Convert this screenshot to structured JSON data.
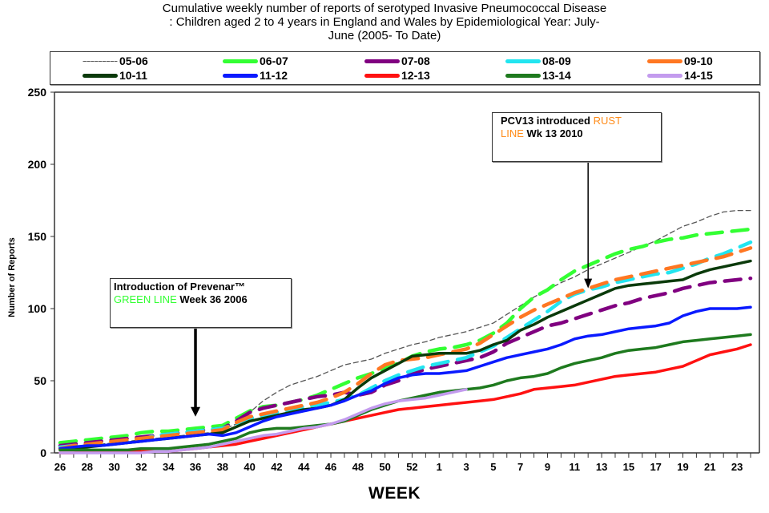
{
  "chart_data": {
    "type": "line",
    "title": "Cumulative weekly number of reports of serotyped  Invasive Pneumococcal Disease : Children aged 2 to 4 years in England and Wales by Epidemiological Year: July-June (2005- To Date)",
    "title_lines": [
      "Cumulative weekly number of reports of serotyped  Invasive Pneumococcal Disease",
      ": Children aged 2 to 4 years in England and Wales by Epidemiological Year: July-",
      "June (2005- To Date)"
    ],
    "xlabel": "WEEK",
    "ylabel": "Number of Reports",
    "ylim": [
      0,
      250
    ],
    "yticks": [
      0,
      50,
      100,
      150,
      200,
      250
    ],
    "x": [
      26,
      27,
      28,
      29,
      30,
      31,
      32,
      33,
      34,
      35,
      36,
      37,
      38,
      39,
      40,
      41,
      42,
      43,
      44,
      45,
      46,
      47,
      48,
      49,
      50,
      51,
      52,
      1,
      2,
      3,
      4,
      5,
      6,
      7,
      8,
      9,
      10,
      11,
      12,
      13,
      14,
      15,
      16,
      17,
      18,
      19,
      20,
      21,
      22,
      23,
      24,
      25
    ],
    "xtick_labels": [
      "26",
      "28",
      "30",
      "32",
      "34",
      "36",
      "38",
      "40",
      "42",
      "44",
      "46",
      "48",
      "50",
      "52",
      "1",
      "3",
      "5",
      "7",
      "9",
      "11",
      "13",
      "15",
      "17",
      "19",
      "21",
      "23",
      "25"
    ],
    "grid": false,
    "legend_position": "top",
    "series": [
      {
        "name": "05-06",
        "color": "#555555",
        "style": "thin-dashed",
        "values": [
          4,
          5,
          5,
          6,
          7,
          8,
          9,
          10,
          11,
          12,
          13,
          14,
          16,
          20,
          28,
          36,
          42,
          47,
          50,
          53,
          57,
          61,
          63,
          65,
          69,
          72,
          75,
          77,
          80,
          82,
          84,
          87,
          90,
          96,
          102,
          108,
          113,
          118,
          122,
          127,
          131,
          135,
          139,
          143,
          147,
          152,
          157,
          160,
          164,
          167,
          168,
          168
        ]
      },
      {
        "name": "06-07",
        "color": "#33ff33",
        "style": "dashed",
        "values": [
          7,
          8,
          9,
          10,
          11,
          12,
          14,
          15,
          15,
          16,
          17,
          18,
          19,
          24,
          29,
          32,
          33,
          35,
          37,
          40,
          44,
          48,
          52,
          55,
          59,
          62,
          67,
          70,
          72,
          73,
          75,
          78,
          83,
          90,
          100,
          108,
          113,
          120,
          126,
          130,
          134,
          138,
          141,
          143,
          146,
          148,
          149,
          151,
          152,
          153,
          154,
          155
        ]
      },
      {
        "name": "07-08",
        "color": "#800080",
        "style": "dashed",
        "values": [
          5,
          6,
          7,
          8,
          9,
          10,
          11,
          12,
          13,
          14,
          15,
          16,
          17,
          22,
          28,
          31,
          33,
          35,
          37,
          39,
          40,
          42,
          40,
          42,
          47,
          50,
          55,
          58,
          60,
          62,
          64,
          66,
          70,
          76,
          80,
          84,
          88,
          90,
          93,
          96,
          99,
          102,
          104,
          107,
          109,
          111,
          114,
          116,
          118,
          119,
          120,
          121
        ]
      },
      {
        "name": "08-09",
        "color": "#22e5f0",
        "style": "dashed",
        "values": [
          4,
          5,
          5,
          6,
          7,
          8,
          9,
          12,
          13,
          14,
          15,
          16,
          17,
          20,
          24,
          26,
          28,
          30,
          32,
          33,
          35,
          37,
          40,
          45,
          50,
          54,
          57,
          60,
          62,
          64,
          66,
          70,
          74,
          80,
          86,
          92,
          98,
          105,
          110,
          113,
          115,
          118,
          120,
          122,
          124,
          125,
          128,
          131,
          135,
          138,
          142,
          146
        ]
      },
      {
        "name": "09-10",
        "color": "#ff7722",
        "style": "dashed",
        "values": [
          3,
          5,
          6,
          7,
          8,
          9,
          10,
          11,
          12,
          13,
          14,
          15,
          16,
          21,
          25,
          27,
          29,
          31,
          33,
          35,
          38,
          42,
          48,
          55,
          61,
          64,
          65,
          66,
          68,
          70,
          72,
          76,
          82,
          88,
          94,
          99,
          103,
          107,
          111,
          114,
          117,
          120,
          122,
          124,
          126,
          128,
          130,
          132,
          134,
          136,
          139,
          142
        ]
      },
      {
        "name": "10-11",
        "color": "#0a3a0a",
        "style": "solid",
        "values": [
          2,
          3,
          4,
          5,
          6,
          7,
          8,
          9,
          10,
          11,
          12,
          13,
          14,
          18,
          22,
          24,
          26,
          28,
          30,
          31,
          33,
          37,
          45,
          52,
          57,
          62,
          67,
          68,
          69,
          69,
          69,
          71,
          75,
          78,
          85,
          89,
          94,
          98,
          102,
          106,
          110,
          114,
          116,
          117,
          118,
          119,
          120,
          124,
          127,
          129,
          131,
          133
        ]
      },
      {
        "name": "11-12",
        "color": "#0a1aff",
        "style": "solid",
        "values": [
          3,
          4,
          5,
          5,
          6,
          7,
          8,
          9,
          10,
          11,
          12,
          13,
          12,
          14,
          18,
          22,
          25,
          27,
          29,
          31,
          33,
          36,
          40,
          43,
          48,
          52,
          54,
          55,
          55,
          56,
          57,
          60,
          63,
          66,
          68,
          70,
          72,
          75,
          79,
          81,
          82,
          84,
          86,
          87,
          88,
          90,
          95,
          98,
          100,
          100,
          100,
          101
        ]
      },
      {
        "name": "12-13",
        "color": "#ff1111",
        "style": "solid",
        "values": [
          0,
          0,
          1,
          1,
          1,
          1,
          1,
          1,
          1,
          2,
          3,
          4,
          5,
          6,
          8,
          10,
          12,
          14,
          16,
          18,
          20,
          22,
          24,
          26,
          28,
          30,
          31,
          32,
          33,
          34,
          35,
          36,
          37,
          39,
          41,
          44,
          45,
          46,
          47,
          49,
          51,
          53,
          54,
          55,
          56,
          58,
          60,
          64,
          68,
          70,
          72,
          75
        ]
      },
      {
        "name": "13-14",
        "color": "#1e7a1e",
        "style": "solid",
        "values": [
          2,
          2,
          2,
          2,
          2,
          2,
          3,
          3,
          3,
          4,
          5,
          6,
          8,
          10,
          14,
          16,
          17,
          17,
          18,
          19,
          20,
          22,
          26,
          30,
          33,
          36,
          38,
          40,
          42,
          43,
          44,
          45,
          47,
          50,
          52,
          53,
          55,
          59,
          62,
          64,
          66,
          69,
          71,
          72,
          73,
          75,
          77,
          78,
          79,
          80,
          81,
          82
        ]
      },
      {
        "name": "14-15",
        "color": "#c39bee",
        "style": "solid",
        "values": [
          0,
          0,
          0,
          0,
          0,
          0,
          0,
          1,
          1,
          2,
          3,
          4,
          6,
          8,
          10,
          12,
          13,
          15,
          17,
          18,
          20,
          23,
          27,
          31,
          34,
          36,
          37,
          38,
          40,
          42,
          44,
          null,
          null,
          null,
          null,
          null,
          null,
          null,
          null,
          null,
          null,
          null,
          null,
          null,
          null,
          null,
          null,
          null,
          null,
          null,
          null,
          null
        ]
      }
    ],
    "annotations": [
      {
        "id": "prevenar",
        "line1": "Introduction of Prevenar™",
        "line2_colored": "GREEN  LINE",
        "line2_rest": " Week 36 2006",
        "colored_hex": "#33ff33",
        "arrow_to_week": 36,
        "arrow_to_value": 24
      },
      {
        "id": "pcv13",
        "line1_prefix": "PCV13 introduced ",
        "line1_colored": "RUST",
        "line2_colored": " LINE",
        "line2_rest": " Wk 13 2010",
        "colored_hex": "#ff8c1a",
        "arrow_to_week": 13,
        "arrow_to_value": 113
      }
    ]
  }
}
